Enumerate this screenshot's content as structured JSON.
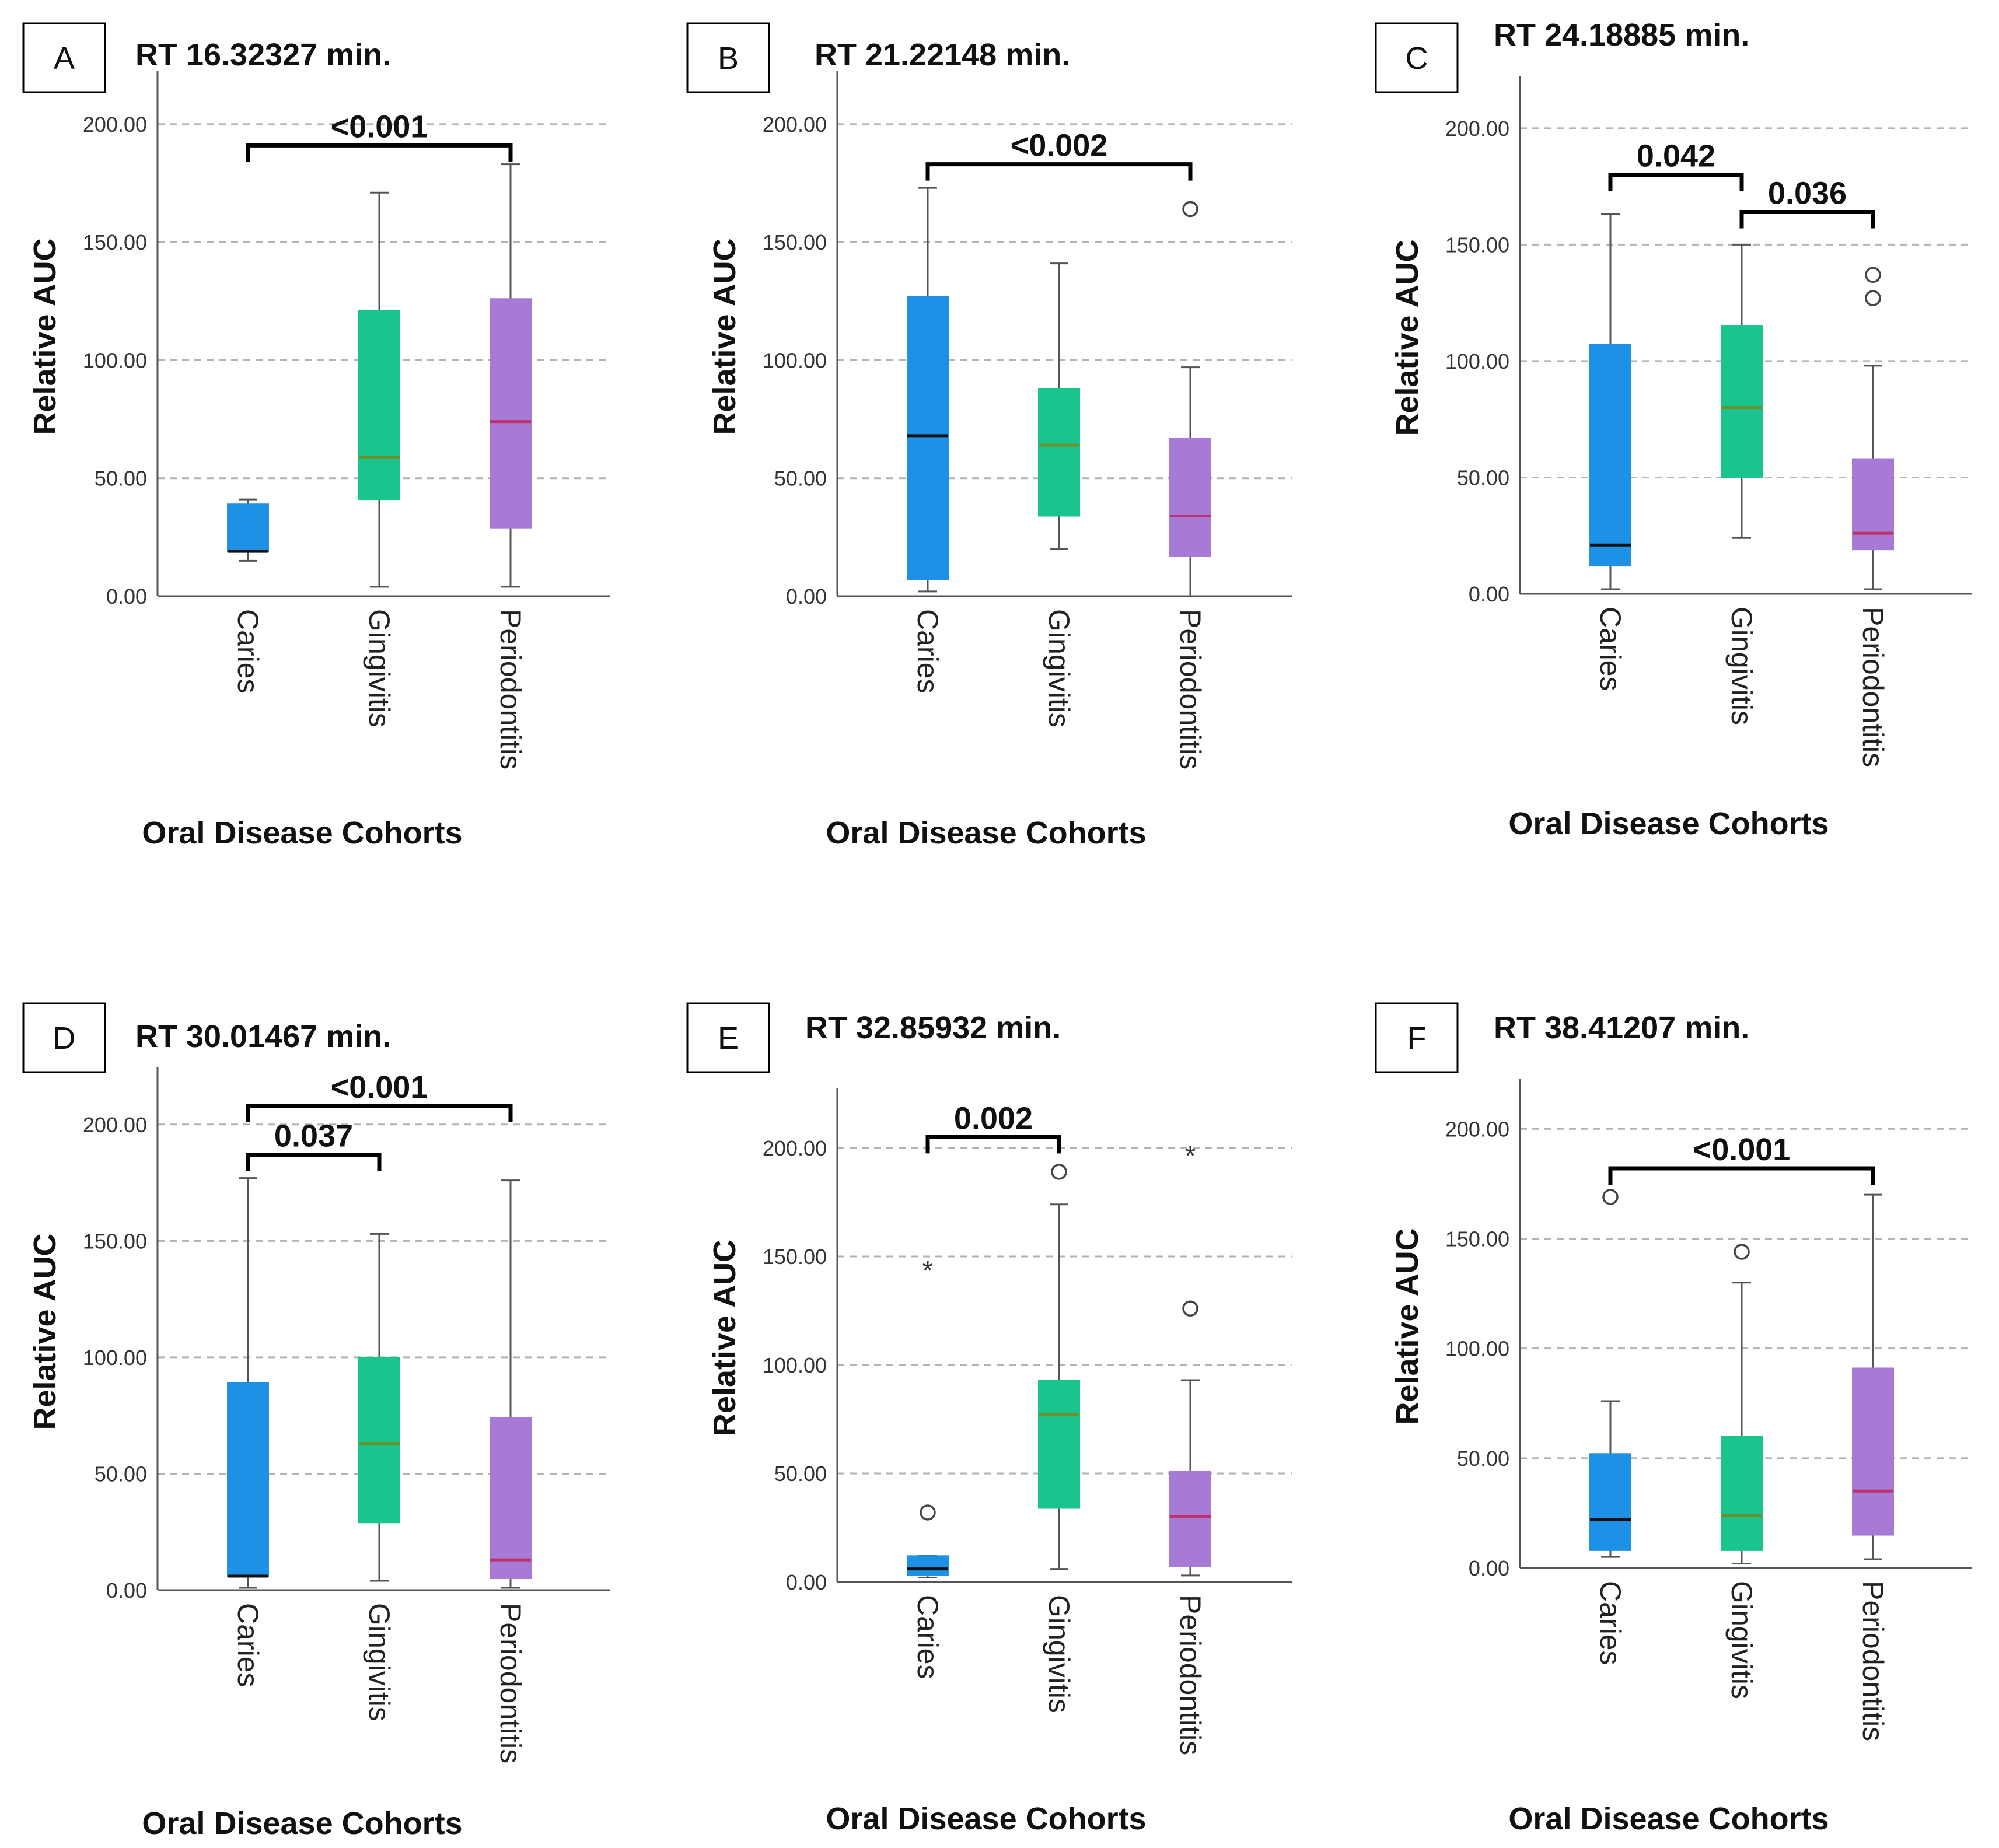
{
  "chart_data": [
    {
      "panel_label": "A",
      "title": "RT 16.32327 min.",
      "type": "boxplot",
      "xlabel": "Oral Disease Cohorts",
      "ylabel": "Relative AUC",
      "ylim": [
        0,
        220
      ],
      "yticks": [
        0,
        50,
        100,
        150,
        200
      ],
      "ytick_labels": [
        "0.00",
        "50.00",
        "100.00",
        "150.00",
        "200.00"
      ],
      "categories": [
        "Caries",
        "Gingivitis",
        "Periodontitis"
      ],
      "boxes": [
        {
          "category": "Caries",
          "min": 15,
          "q1": 19,
          "median": 19,
          "q3": 39,
          "max": 41,
          "color": "#1e90e6",
          "median_color": "#111111",
          "outliers": []
        },
        {
          "category": "Gingivitis",
          "min": 4,
          "q1": 41,
          "median": 59,
          "q3": 121,
          "max": 171,
          "color": "#19c48f",
          "median_color": "#6e8f2a",
          "outliers": []
        },
        {
          "category": "Periodontitis",
          "min": 4,
          "q1": 29,
          "median": 74,
          "q3": 126,
          "max": 183,
          "color": "#a77ad6",
          "median_color": "#c0306a",
          "outliers": []
        }
      ],
      "brackets": [
        {
          "from": "Caries",
          "to": "Periodontitis",
          "y": 191,
          "label": "<0.001"
        }
      ]
    },
    {
      "panel_label": "B",
      "title": "RT 21.22148 min.",
      "type": "boxplot",
      "xlabel": "Oral Disease Cohorts",
      "ylabel": "Relative AUC",
      "ylim": [
        0,
        220
      ],
      "yticks": [
        0,
        50,
        100,
        150,
        200
      ],
      "ytick_labels": [
        "0.00",
        "50.00",
        "100.00",
        "150.00",
        "200.00"
      ],
      "categories": [
        "Caries",
        "Gingivitis",
        "Periodontitis"
      ],
      "boxes": [
        {
          "category": "Caries",
          "min": 2,
          "q1": 7,
          "median": 68,
          "q3": 127,
          "max": 173,
          "color": "#1e90e6",
          "median_color": "#111111",
          "outliers": []
        },
        {
          "category": "Gingivitis",
          "min": 20,
          "q1": 34,
          "median": 64,
          "q3": 88,
          "max": 141,
          "color": "#19c48f",
          "median_color": "#6e8f2a",
          "outliers": []
        },
        {
          "category": "Periodontitis",
          "min": 0,
          "q1": 17,
          "median": 34,
          "q3": 67,
          "max": 97,
          "color": "#a77ad6",
          "median_color": "#c0306a",
          "outliers": [
            {
              "v": 164,
              "m": "o"
            }
          ]
        }
      ],
      "brackets": [
        {
          "from": "Caries",
          "to": "Periodontitis",
          "y": 183,
          "label": "<0.002"
        }
      ]
    },
    {
      "panel_label": "C",
      "title": "RT 24.18885 min.",
      "type": "boxplot",
      "xlabel": "Oral Disease Cohorts",
      "ylabel": "Relative AUC",
      "ylim": [
        0,
        220
      ],
      "yticks": [
        0,
        50,
        100,
        150,
        200
      ],
      "ytick_labels": [
        "0.00",
        "50.00",
        "100.00",
        "150.00",
        "200.00"
      ],
      "categories": [
        "Caries",
        "Gingivitis",
        "Periodontitis"
      ],
      "boxes": [
        {
          "category": "Caries",
          "min": 2,
          "q1": 12,
          "median": 21,
          "q3": 107,
          "max": 163,
          "color": "#1e90e6",
          "median_color": "#111111",
          "outliers": []
        },
        {
          "category": "Gingivitis",
          "min": 24,
          "q1": 50,
          "median": 80,
          "q3": 115,
          "max": 150,
          "color": "#19c48f",
          "median_color": "#6e8f2a",
          "outliers": []
        },
        {
          "category": "Periodontitis",
          "min": 2,
          "q1": 19,
          "median": 26,
          "q3": 58,
          "max": 98,
          "color": "#a77ad6",
          "median_color": "#c0306a",
          "outliers": [
            {
              "v": 127,
              "m": "o"
            },
            {
              "v": 137,
              "m": "o"
            }
          ]
        }
      ],
      "brackets": [
        {
          "from": "Caries",
          "to": "Gingivitis",
          "y": 180,
          "label": "0.042"
        },
        {
          "from": "Gingivitis",
          "to": "Periodontitis",
          "y": 164,
          "label": "0.036"
        }
      ]
    },
    {
      "panel_label": "D",
      "title": "RT 30.01467 min.",
      "type": "boxplot",
      "xlabel": "Oral Disease Cohorts",
      "ylabel": "Relative AUC",
      "ylim": [
        0,
        222
      ],
      "yticks": [
        0,
        50,
        100,
        150,
        200
      ],
      "ytick_labels": [
        "0.00",
        "50.00",
        "100.00",
        "150.00",
        "200.00"
      ],
      "categories": [
        "Caries",
        "Gingivitis",
        "Periodontitis"
      ],
      "boxes": [
        {
          "category": "Caries",
          "min": 1,
          "q1": 6,
          "median": 6,
          "q3": 89,
          "max": 177,
          "color": "#1e90e6",
          "median_color": "#111111",
          "outliers": []
        },
        {
          "category": "Gingivitis",
          "min": 4,
          "q1": 29,
          "median": 63,
          "q3": 100,
          "max": 153,
          "color": "#19c48f",
          "median_color": "#6e8f2a",
          "outliers": []
        },
        {
          "category": "Periodontitis",
          "min": 1,
          "q1": 5,
          "median": 13,
          "q3": 74,
          "max": 176,
          "color": "#a77ad6",
          "median_color": "#c0306a",
          "outliers": []
        }
      ],
      "brackets": [
        {
          "from": "Caries",
          "to": "Periodontitis",
          "y": 208,
          "label": "<0.001"
        },
        {
          "from": "Caries",
          "to": "Gingivitis",
          "y": 187,
          "label": "0.037"
        }
      ]
    },
    {
      "panel_label": "E",
      "title": "RT 32.85932 min.",
      "type": "boxplot",
      "xlabel": "Oral Disease Cohorts",
      "ylabel": "Relative AUC",
      "ylim": [
        0,
        225
      ],
      "yticks": [
        0,
        50,
        100,
        150,
        200
      ],
      "ytick_labels": [
        "0.00",
        "50.00",
        "100.00",
        "150.00",
        "200.00"
      ],
      "categories": [
        "Caries",
        "Gingivitis",
        "Periodontitis"
      ],
      "boxes": [
        {
          "category": "Caries",
          "min": 2,
          "q1": 3,
          "median": 6,
          "q3": 12,
          "max": 12,
          "color": "#1e90e6",
          "median_color": "#111111",
          "outliers": [
            {
              "v": 32,
              "m": "o"
            },
            {
              "v": 145,
              "m": "*"
            }
          ]
        },
        {
          "category": "Gingivitis",
          "min": 6,
          "q1": 34,
          "median": 77,
          "q3": 93,
          "max": 174,
          "color": "#19c48f",
          "median_color": "#6e8f2a",
          "outliers": [
            {
              "v": 189,
              "m": "o"
            }
          ]
        },
        {
          "category": "Periodontitis",
          "min": 3,
          "q1": 7,
          "median": 30,
          "q3": 51,
          "max": 93,
          "color": "#a77ad6",
          "median_color": "#c0306a",
          "outliers": [
            {
              "v": 126,
              "m": "o"
            },
            {
              "v": 198,
              "m": "*"
            }
          ]
        }
      ],
      "brackets": [
        {
          "from": "Caries",
          "to": "Gingivitis",
          "y": 205,
          "label": "0.002"
        }
      ]
    },
    {
      "panel_label": "F",
      "title": "RT 38.41207 min.",
      "type": "boxplot",
      "xlabel": "Oral Disease Cohorts",
      "ylabel": "Relative AUC",
      "ylim": [
        0,
        220
      ],
      "yticks": [
        0,
        50,
        100,
        150,
        200
      ],
      "ytick_labels": [
        "0.00",
        "50.00",
        "100.00",
        "150.00",
        "200.00"
      ],
      "categories": [
        "Caries",
        "Gingivitis",
        "Periodontitis"
      ],
      "boxes": [
        {
          "category": "Caries",
          "min": 5,
          "q1": 8,
          "median": 22,
          "q3": 52,
          "max": 76,
          "color": "#1e90e6",
          "median_color": "#111111",
          "outliers": [
            {
              "v": 169,
              "m": "o"
            }
          ]
        },
        {
          "category": "Gingivitis",
          "min": 2,
          "q1": 8,
          "median": 24,
          "q3": 60,
          "max": 130,
          "color": "#19c48f",
          "median_color": "#6e8f2a",
          "outliers": [
            {
              "v": 144,
              "m": "o"
            }
          ]
        },
        {
          "category": "Periodontitis",
          "min": 4,
          "q1": 15,
          "median": 35,
          "q3": 91,
          "max": 170,
          "color": "#a77ad6",
          "median_color": "#c0306a",
          "outliers": []
        }
      ],
      "brackets": [
        {
          "from": "Caries",
          "to": "Periodontitis",
          "y": 182,
          "label": "<0.001"
        }
      ]
    }
  ]
}
